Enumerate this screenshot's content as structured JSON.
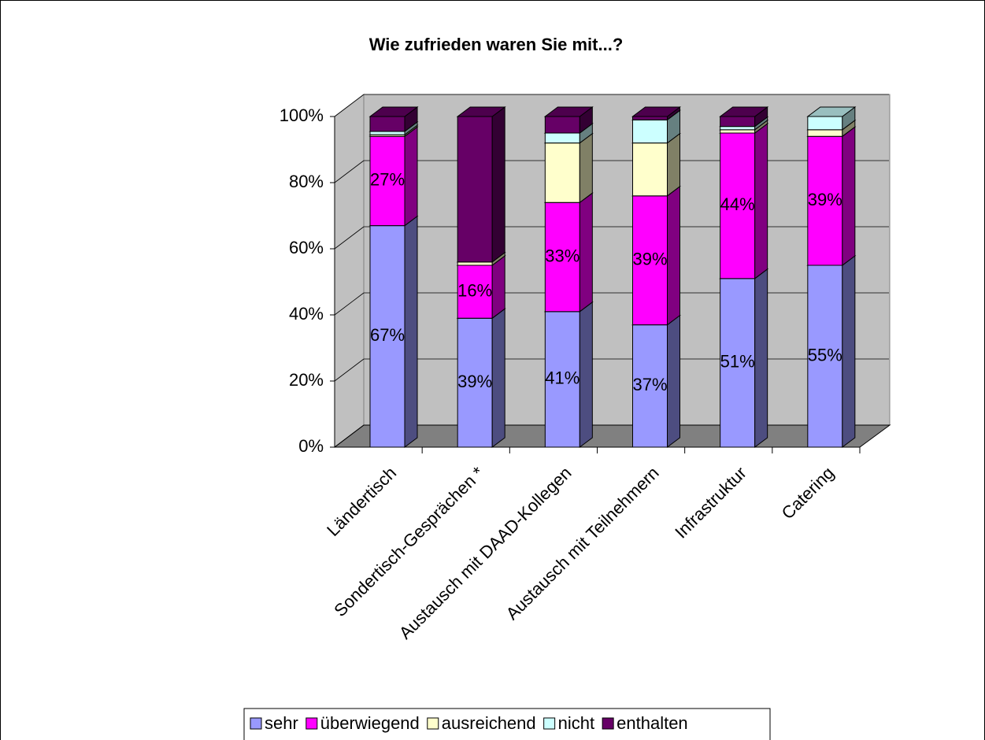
{
  "chart_data": {
    "type": "bar3d_stacked",
    "title": "Wie zufrieden waren Sie mit...?",
    "categories": [
      "Ländertisch",
      "Sondertisch-Gesprächen *",
      "Austausch mit DAAD-Kollegen",
      "Austausch mit Teilnehmern",
      "Infrastruktur",
      "Catering"
    ],
    "series": [
      {
        "name": "sehr",
        "color": "#9999ff",
        "values": [
          67,
          39,
          41,
          37,
          51,
          55
        ],
        "value_labels": [
          "67%",
          "39%",
          "41%",
          "37%",
          "51%",
          "55%"
        ]
      },
      {
        "name": "überwiegend",
        "color": "#ff00ff",
        "values": [
          27,
          16,
          33,
          39,
          44,
          39
        ],
        "value_labels": [
          "27%",
          "16%",
          "33%",
          "39%",
          "44%",
          "39%"
        ]
      },
      {
        "name": "ausreichend",
        "color": "#ffffcc",
        "values": [
          0.5,
          1,
          18,
          16,
          1,
          2
        ]
      },
      {
        "name": "nicht",
        "color": "#ccffff",
        "values": [
          1,
          0,
          3,
          7,
          1,
          4
        ]
      },
      {
        "name": "enthalten",
        "color": "#660066",
        "values": [
          4.5,
          44,
          5,
          1,
          3,
          0
        ]
      }
    ],
    "ylim": [
      0,
      100
    ],
    "yticks": [
      {
        "value": 0,
        "label": "0%"
      },
      {
        "value": 20,
        "label": "20%"
      },
      {
        "value": 40,
        "label": "40%"
      },
      {
        "value": 60,
        "label": "60%"
      },
      {
        "value": 80,
        "label": "80%"
      },
      {
        "value": 100,
        "label": "100%"
      }
    ],
    "grid": true,
    "legend": "bottom"
  }
}
